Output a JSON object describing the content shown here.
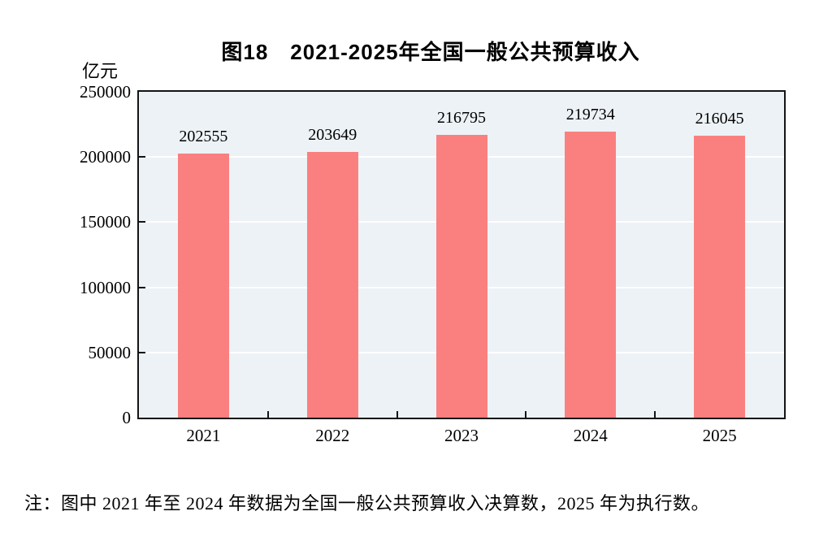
{
  "chart_data": {
    "type": "bar",
    "title": "图18　2021-2025年全国一般公共预算收入",
    "unit": "亿元",
    "categories": [
      "2021",
      "2022",
      "2023",
      "2024",
      "2025"
    ],
    "values": [
      202555,
      203649,
      216795,
      219734,
      216045
    ],
    "ylabel": "亿元",
    "ylim": [
      0,
      250000
    ],
    "yticks": [
      0,
      50000,
      100000,
      150000,
      200000,
      250000
    ],
    "grid": true,
    "legend": "none",
    "data_labels": true,
    "bar_color": "#FA8080",
    "plot_bg": "#EDF2F6",
    "grid_color": "#FFFFFF",
    "axis_color": "#141414",
    "note": "注：图中 2021 年至 2024 年数据为全国一般公共预算收入决算数，2025 年为执行数。"
  }
}
